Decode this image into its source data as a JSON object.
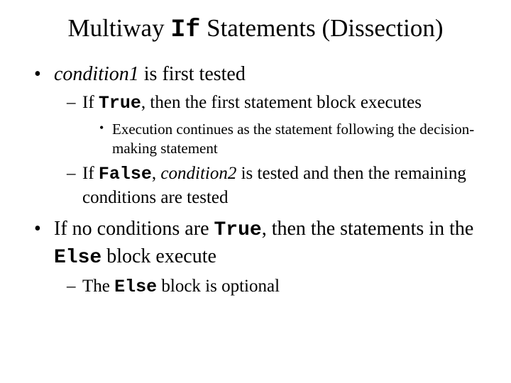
{
  "title": {
    "pre": "Multiway ",
    "code": "If",
    "post": " Statements (Dissection)"
  },
  "bullets": [
    {
      "segments": [
        {
          "t": "condition1",
          "style": "italic"
        },
        {
          "t": " is first tested",
          "style": "plain"
        }
      ],
      "children": [
        {
          "segments": [
            {
              "t": "If ",
              "style": "plain"
            },
            {
              "t": "True",
              "style": "mono"
            },
            {
              "t": ", then the first statement block executes",
              "style": "plain"
            }
          ],
          "children": [
            {
              "segments": [
                {
                  "t": "Execution continues as the statement following the decision-making statement",
                  "style": "plain"
                }
              ]
            }
          ]
        },
        {
          "segments": [
            {
              "t": "If ",
              "style": "plain"
            },
            {
              "t": "False",
              "style": "mono"
            },
            {
              "t": ", ",
              "style": "plain"
            },
            {
              "t": "condition2",
              "style": "italic"
            },
            {
              "t": " is tested and then the remaining conditions are tested",
              "style": "plain"
            }
          ]
        }
      ]
    },
    {
      "segments": [
        {
          "t": "If no conditions are ",
          "style": "plain"
        },
        {
          "t": "True",
          "style": "mono"
        },
        {
          "t": ", then the statements in the ",
          "style": "plain"
        },
        {
          "t": "Else",
          "style": "mono"
        },
        {
          "t": " block execute",
          "style": "plain"
        }
      ],
      "children": [
        {
          "segments": [
            {
              "t": "The ",
              "style": "plain"
            },
            {
              "t": "Else",
              "style": "mono"
            },
            {
              "t": " block is optional",
              "style": "plain"
            }
          ]
        }
      ]
    }
  ]
}
